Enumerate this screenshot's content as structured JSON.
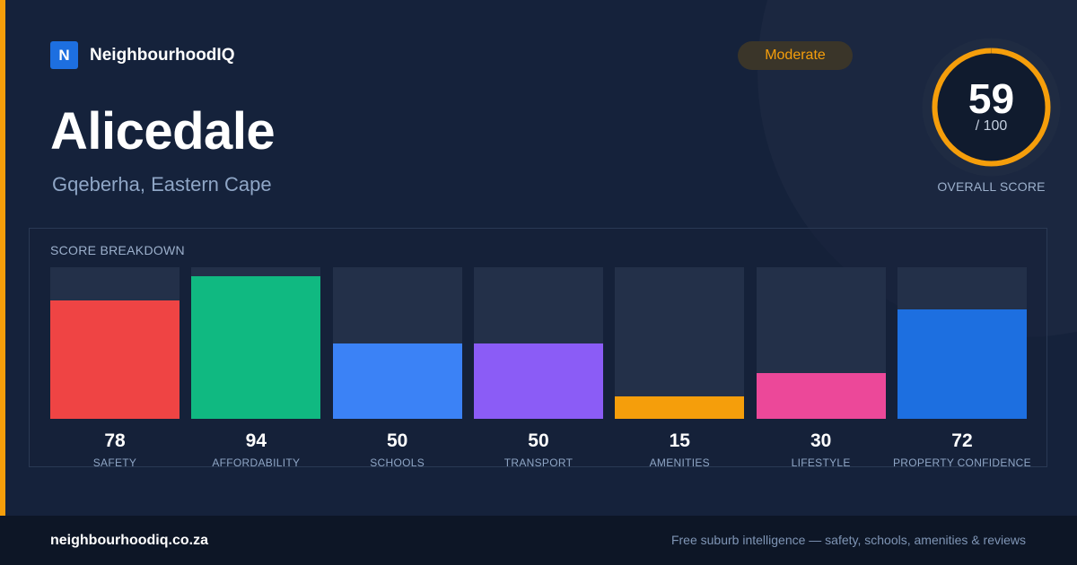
{
  "brand": {
    "logo_letter": "N",
    "name": "NeighbourhoodIQ"
  },
  "suburb": {
    "name": "Alicedale",
    "region": "Gqeberha, Eastern Cape"
  },
  "rating_badge": "Moderate",
  "overall": {
    "score": "59",
    "max": "/ 100",
    "caption": "OVERALL SCORE",
    "fraction": 0.59,
    "color": "#f59e0b"
  },
  "breakdown": {
    "title": "SCORE BREAKDOWN"
  },
  "chart_data": {
    "type": "bar",
    "title": "SCORE BREAKDOWN",
    "ylim": [
      0,
      100
    ],
    "categories": [
      "SAFETY",
      "AFFORDABILITY",
      "SCHOOLS",
      "TRANSPORT",
      "AMENITIES",
      "LIFESTYLE",
      "PROPERTY CONFIDENCE"
    ],
    "values": [
      78,
      94,
      50,
      50,
      15,
      30,
      72
    ],
    "colors": [
      "#ef4444",
      "#10b981",
      "#3b82f6",
      "#8b5cf6",
      "#f59e0b",
      "#ec4899",
      "#1d6fe0"
    ]
  },
  "footer": {
    "site": "neighbourhoodiq.co.za",
    "tagline": "Free suburb intelligence — safety, schools, amenities & reviews"
  }
}
